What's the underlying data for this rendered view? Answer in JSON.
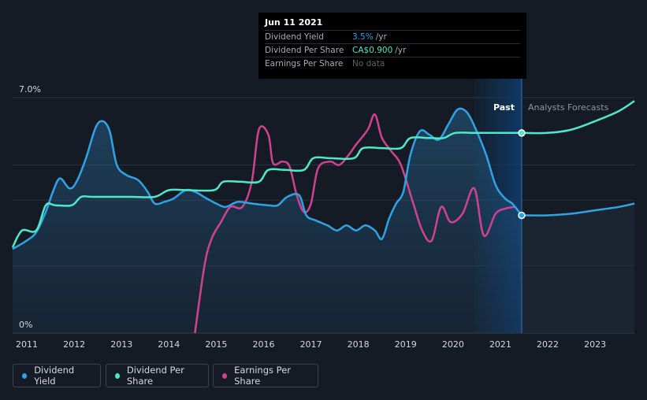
{
  "tooltip": {
    "date": "Jun 11 2021",
    "rows": [
      {
        "label": "Dividend Yield",
        "value": "3.5%",
        "unit": "/yr"
      },
      {
        "label": "Dividend Per Share",
        "value": "CA$0.900",
        "unit": "/yr"
      },
      {
        "label": "Earnings Per Share",
        "value": "No data",
        "unit": ""
      }
    ]
  },
  "colors": {
    "dividend_yield": "#2fa3e6",
    "dividend_per_share": "#4fe8c8",
    "earnings_per_share": "#d0428f",
    "background": "#151b24"
  },
  "legend": [
    {
      "label": "Dividend Yield",
      "color": "#2fa3e6"
    },
    {
      "label": "Dividend Per Share",
      "color": "#4fe8c8"
    },
    {
      "label": "Earnings Per Share",
      "color": "#d0428f"
    }
  ],
  "chart_data": {
    "type": "line",
    "y_tick_labels": [
      "7.0%",
      "0%"
    ],
    "ylim": [
      0,
      7.0
    ],
    "xlim": [
      2010.7,
      2023.83
    ],
    "x_tick_labels": [
      "2011",
      "2012",
      "2013",
      "2014",
      "2015",
      "2016",
      "2017",
      "2018",
      "2019",
      "2020",
      "2021",
      "2022",
      "2023"
    ],
    "past_label": "Past",
    "forecast_label": "Analysts Forecasts",
    "divider_x": 2021.45,
    "grid": true,
    "legend_position": "bottom-left",
    "series": [
      {
        "name": "Dividend Yield",
        "values": [
          [
            2010.7,
            2.5
          ],
          [
            2011.0,
            2.75
          ],
          [
            2011.2,
            3.0
          ],
          [
            2011.4,
            3.6
          ],
          [
            2011.55,
            4.2
          ],
          [
            2011.7,
            4.6
          ],
          [
            2011.9,
            4.3
          ],
          [
            2012.05,
            4.5
          ],
          [
            2012.25,
            5.2
          ],
          [
            2012.45,
            6.1
          ],
          [
            2012.6,
            6.3
          ],
          [
            2012.75,
            6.0
          ],
          [
            2012.9,
            5.0
          ],
          [
            2013.1,
            4.7
          ],
          [
            2013.35,
            4.55
          ],
          [
            2013.55,
            4.2
          ],
          [
            2013.7,
            3.85
          ],
          [
            2013.9,
            3.9
          ],
          [
            2014.1,
            4.0
          ],
          [
            2014.35,
            4.25
          ],
          [
            2014.55,
            4.2
          ],
          [
            2014.8,
            4.0
          ],
          [
            2015.0,
            3.85
          ],
          [
            2015.2,
            3.75
          ],
          [
            2015.45,
            3.9
          ],
          [
            2015.75,
            3.85
          ],
          [
            2016.1,
            3.8
          ],
          [
            2016.3,
            3.8
          ],
          [
            2016.5,
            4.05
          ],
          [
            2016.75,
            4.1
          ],
          [
            2016.9,
            3.5
          ],
          [
            2017.1,
            3.35
          ],
          [
            2017.35,
            3.2
          ],
          [
            2017.55,
            3.05
          ],
          [
            2017.75,
            3.2
          ],
          [
            2017.95,
            3.05
          ],
          [
            2018.15,
            3.2
          ],
          [
            2018.35,
            3.05
          ],
          [
            2018.5,
            2.8
          ],
          [
            2018.65,
            3.4
          ],
          [
            2018.8,
            3.85
          ],
          [
            2018.95,
            4.2
          ],
          [
            2019.1,
            5.3
          ],
          [
            2019.3,
            6.0
          ],
          [
            2019.5,
            5.9
          ],
          [
            2019.7,
            5.75
          ],
          [
            2019.9,
            6.2
          ],
          [
            2020.1,
            6.65
          ],
          [
            2020.3,
            6.55
          ],
          [
            2020.5,
            6.0
          ],
          [
            2020.7,
            5.3
          ],
          [
            2020.9,
            4.4
          ],
          [
            2021.1,
            4.0
          ],
          [
            2021.25,
            3.85
          ],
          [
            2021.45,
            3.5
          ]
        ],
        "forecast": [
          [
            2021.45,
            3.5
          ],
          [
            2022.0,
            3.5
          ],
          [
            2022.5,
            3.55
          ],
          [
            2023.0,
            3.65
          ],
          [
            2023.5,
            3.75
          ],
          [
            2023.83,
            3.85
          ]
        ]
      },
      {
        "name": "Dividend Per Share",
        "values": [
          [
            2010.7,
            2.55
          ],
          [
            2010.9,
            3.05
          ],
          [
            2011.2,
            3.05
          ],
          [
            2011.4,
            3.8
          ],
          [
            2011.6,
            3.8
          ],
          [
            2011.95,
            3.8
          ],
          [
            2012.15,
            4.05
          ],
          [
            2012.4,
            4.05
          ],
          [
            2013.2,
            4.05
          ],
          [
            2013.7,
            4.05
          ],
          [
            2014.0,
            4.25
          ],
          [
            2014.4,
            4.25
          ],
          [
            2014.95,
            4.25
          ],
          [
            2015.15,
            4.5
          ],
          [
            2015.5,
            4.5
          ],
          [
            2015.9,
            4.5
          ],
          [
            2016.1,
            4.85
          ],
          [
            2016.45,
            4.85
          ],
          [
            2016.85,
            4.85
          ],
          [
            2017.05,
            5.2
          ],
          [
            2017.4,
            5.2
          ],
          [
            2017.9,
            5.2
          ],
          [
            2018.1,
            5.5
          ],
          [
            2018.5,
            5.5
          ],
          [
            2018.9,
            5.5
          ],
          [
            2019.1,
            5.8
          ],
          [
            2019.5,
            5.8
          ],
          [
            2019.8,
            5.8
          ],
          [
            2020.05,
            5.95
          ],
          [
            2020.5,
            5.95
          ],
          [
            2021.0,
            5.95
          ],
          [
            2021.45,
            5.95
          ]
        ],
        "forecast": [
          [
            2021.45,
            5.95
          ],
          [
            2022.0,
            5.95
          ],
          [
            2022.5,
            6.05
          ],
          [
            2023.0,
            6.3
          ],
          [
            2023.5,
            6.6
          ],
          [
            2023.83,
            6.9
          ]
        ]
      },
      {
        "name": "Earnings Per Share",
        "values": [
          [
            2014.55,
            0.0
          ],
          [
            2014.75,
            2.0
          ],
          [
            2014.9,
            2.8
          ],
          [
            2015.1,
            3.3
          ],
          [
            2015.3,
            3.75
          ],
          [
            2015.55,
            3.75
          ],
          [
            2015.75,
            4.5
          ],
          [
            2015.9,
            6.05
          ],
          [
            2016.1,
            5.9
          ],
          [
            2016.2,
            5.05
          ],
          [
            2016.4,
            5.1
          ],
          [
            2016.55,
            4.95
          ],
          [
            2016.7,
            4.1
          ],
          [
            2016.85,
            3.6
          ],
          [
            2017.0,
            3.85
          ],
          [
            2017.15,
            4.9
          ],
          [
            2017.4,
            5.1
          ],
          [
            2017.6,
            5.0
          ],
          [
            2017.8,
            5.3
          ],
          [
            2017.95,
            5.6
          ],
          [
            2018.2,
            6.05
          ],
          [
            2018.35,
            6.5
          ],
          [
            2018.5,
            5.8
          ],
          [
            2018.7,
            5.4
          ],
          [
            2018.9,
            5.0
          ],
          [
            2019.15,
            3.9
          ],
          [
            2019.35,
            3.05
          ],
          [
            2019.55,
            2.75
          ],
          [
            2019.75,
            3.75
          ],
          [
            2019.95,
            3.3
          ],
          [
            2020.2,
            3.55
          ],
          [
            2020.45,
            4.3
          ],
          [
            2020.65,
            2.9
          ],
          [
            2020.9,
            3.55
          ],
          [
            2021.1,
            3.7
          ],
          [
            2021.3,
            3.75
          ]
        ]
      }
    ]
  }
}
